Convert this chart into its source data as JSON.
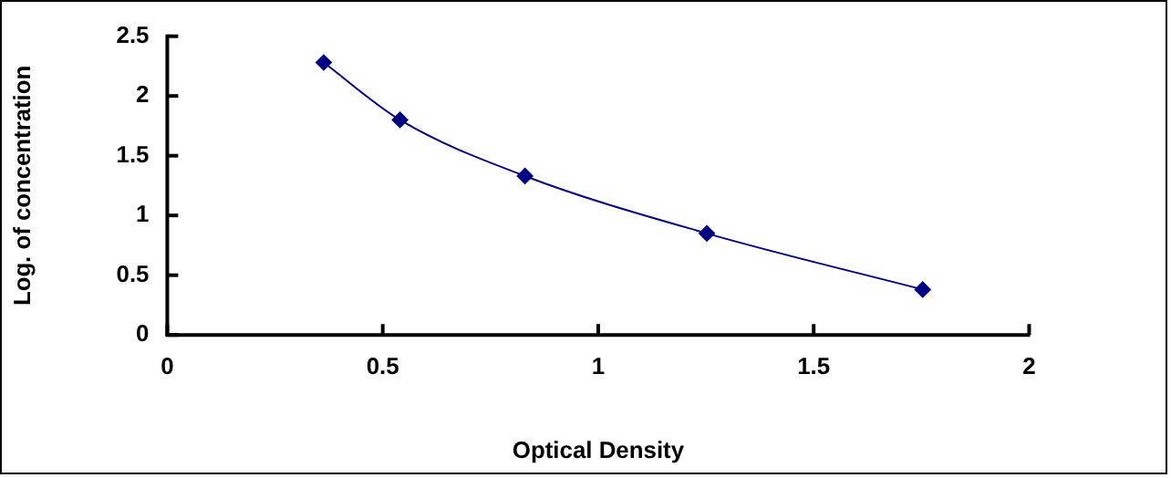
{
  "chart_data": {
    "type": "line",
    "xlabel": "Optical Density",
    "ylabel": "Log. of concentration",
    "x": [
      0.363,
      0.54,
      0.83,
      1.252,
      1.753
    ],
    "series": [
      {
        "color": "#000080",
        "values": [
          2.28,
          1.8,
          1.33,
          0.85,
          0.38
        ]
      }
    ],
    "xlim": [
      0,
      2
    ],
    "xticks": [
      0,
      0.5,
      1,
      1.5,
      2
    ],
    "ylim": [
      0,
      2.5
    ],
    "yticks": [
      0,
      0.5,
      1,
      1.5,
      2,
      2.5
    ],
    "grid": false,
    "legend": false,
    "marker": "diamond",
    "line_style": "solid"
  }
}
